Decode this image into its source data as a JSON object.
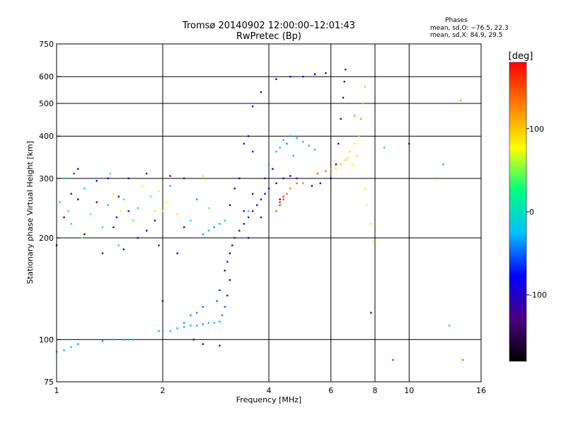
{
  "chart_data": {
    "type": "scatter",
    "title": "Tromsø 20140902 12:00:00–12:01:43",
    "subtitle": "RwPretec (Bp)",
    "xlabel": "Frequency [MHz]",
    "ylabel": "Stationary phase Virtual Height [km]",
    "x_scale": "log",
    "y_scale": "log",
    "xlim": [
      1,
      16
    ],
    "ylim": [
      75,
      750
    ],
    "x_ticks": [
      1,
      2,
      4,
      6,
      8,
      10,
      16
    ],
    "y_ticks": [
      75,
      100,
      200,
      300,
      400,
      500,
      600,
      750
    ],
    "grid": true,
    "phases": {
      "title": "Phases",
      "line1": "mean, sd,O: −76.5, 22.3",
      "line2": "mean, sd,X:  84.9, 29.5"
    },
    "colorbar": {
      "label": "[deg]",
      "range": [
        -180,
        180
      ],
      "ticks": [
        100,
        0,
        -100
      ],
      "colormap": [
        "#000000",
        "#4b0082",
        "#0000ff",
        "#00bfff",
        "#00ff7f",
        "#ffff00",
        "#ff7f00",
        "#ff0000"
      ]
    },
    "series": [
      {
        "values": [
          [
            1.02,
            255,
            -20
          ],
          [
            1.05,
            300,
            10
          ],
          [
            1.08,
            240,
            30
          ],
          [
            1.1,
            220,
            20
          ],
          [
            1.12,
            310,
            -60
          ],
          [
            1.15,
            260,
            -100
          ],
          [
            1.18,
            200,
            50
          ],
          [
            1.2,
            280,
            -10
          ],
          [
            1.25,
            235,
            40
          ],
          [
            1.3,
            295,
            -90
          ],
          [
            1.35,
            215,
            20
          ],
          [
            1.4,
            250,
            -20
          ],
          [
            1.42,
            310,
            30
          ],
          [
            1.45,
            270,
            60
          ],
          [
            1.48,
            230,
            -80
          ],
          [
            1.5,
            190,
            10
          ],
          [
            1.52,
            240,
            80
          ],
          [
            1.55,
            260,
            30
          ],
          [
            1.6,
            300,
            -110
          ],
          [
            1.65,
            225,
            40
          ],
          [
            1.7,
            245,
            20
          ],
          [
            1.75,
            285,
            70
          ],
          [
            1.8,
            210,
            -90
          ],
          [
            1.85,
            265,
            40
          ],
          [
            1.9,
            240,
            60
          ],
          [
            1.95,
            275,
            70
          ],
          [
            2.0,
            240,
            90
          ],
          [
            2.05,
            255,
            75
          ],
          [
            2.1,
            285,
            -20
          ],
          [
            2.2,
            235,
            85
          ],
          [
            2.3,
            300,
            -100
          ],
          [
            2.4,
            225,
            10
          ],
          [
            2.5,
            260,
            -40
          ],
          [
            2.6,
            305,
            60
          ],
          [
            2.7,
            245,
            40
          ]
        ]
      },
      {
        "values": [
          [
            1.0,
            190,
            -110
          ],
          [
            1.05,
            230,
            -120
          ],
          [
            1.1,
            270,
            -130
          ],
          [
            1.15,
            320,
            -110
          ],
          [
            1.2,
            205,
            -100
          ],
          [
            1.3,
            255,
            -140
          ],
          [
            1.35,
            180,
            -120
          ],
          [
            1.4,
            300,
            -100
          ],
          [
            1.45,
            215,
            -120
          ],
          [
            1.5,
            265,
            -110
          ],
          [
            1.55,
            185,
            -130
          ],
          [
            1.6,
            240,
            -100
          ],
          [
            1.7,
            200,
            -110
          ],
          [
            1.8,
            310,
            -120
          ],
          [
            1.9,
            225,
            -100
          ],
          [
            1.95,
            190,
            -110
          ],
          [
            2.0,
            130,
            -100
          ],
          [
            2.1,
            305,
            -120
          ],
          [
            2.2,
            180,
            -110
          ],
          [
            2.3,
            215,
            -100
          ],
          [
            2.45,
            100,
            -110
          ],
          [
            2.6,
            97,
            -120
          ],
          [
            2.9,
            96,
            -100
          ]
        ]
      },
      {
        "values": [
          [
            1.0,
            92,
            -20
          ],
          [
            1.05,
            93,
            -30
          ],
          [
            1.1,
            95,
            -25
          ],
          [
            1.15,
            97,
            -30
          ],
          [
            1.35,
            99,
            -35
          ],
          [
            1.45,
            100,
            -20
          ],
          [
            1.55,
            100,
            -25
          ],
          [
            1.6,
            100,
            -30
          ],
          [
            1.65,
            100,
            -20
          ]
        ]
      },
      {
        "values": [
          [
            1.95,
            106,
            -30
          ],
          [
            2.0,
            106,
            -35
          ],
          [
            2.1,
            106,
            -25
          ],
          [
            2.2,
            108,
            -30
          ],
          [
            2.3,
            109,
            -30
          ],
          [
            2.4,
            110,
            -25
          ],
          [
            2.5,
            110,
            -30
          ],
          [
            2.6,
            111,
            -35
          ],
          [
            2.7,
            112,
            -30
          ],
          [
            2.8,
            112,
            -25
          ],
          [
            2.9,
            113,
            -30
          ],
          [
            2.95,
            118,
            -40
          ],
          [
            3.0,
            125,
            -50
          ],
          [
            3.05,
            135,
            -70
          ],
          [
            3.1,
            150,
            -90
          ],
          [
            2.9,
            140,
            -60
          ],
          [
            2.85,
            130,
            -50
          ],
          [
            2.6,
            125,
            -45
          ],
          [
            2.5,
            120,
            -40
          ],
          [
            2.4,
            118,
            -40
          ],
          [
            2.3,
            112,
            -35
          ]
        ]
      },
      {
        "values": [
          [
            3.0,
            160,
            -100
          ],
          [
            3.05,
            170,
            -110
          ],
          [
            3.1,
            180,
            -110
          ],
          [
            3.15,
            190,
            -115
          ],
          [
            3.2,
            200,
            -120
          ],
          [
            3.3,
            210,
            -110
          ],
          [
            3.4,
            220,
            -115
          ],
          [
            3.5,
            230,
            -110
          ],
          [
            3.6,
            240,
            -100
          ],
          [
            3.7,
            250,
            -110
          ],
          [
            3.8,
            260,
            -100
          ],
          [
            3.9,
            270,
            -105
          ],
          [
            4.0,
            280,
            -100
          ],
          [
            4.2,
            290,
            -95
          ],
          [
            4.4,
            300,
            -90
          ],
          [
            4.6,
            305,
            -100
          ],
          [
            4.8,
            300,
            -110
          ],
          [
            5.0,
            290,
            -115
          ],
          [
            5.3,
            285,
            -100
          ],
          [
            5.6,
            290,
            -100
          ],
          [
            6.0,
            300,
            -100
          ],
          [
            6.2,
            330,
            -110
          ],
          [
            6.3,
            380,
            -110
          ],
          [
            6.4,
            450,
            -100
          ],
          [
            6.5,
            520,
            -100
          ],
          [
            6.55,
            580,
            -110
          ],
          [
            6.6,
            630,
            -100
          ],
          [
            3.1,
            250,
            -110
          ],
          [
            3.2,
            280,
            -100
          ],
          [
            3.3,
            300,
            -110
          ],
          [
            3.4,
            240,
            -120
          ],
          [
            3.5,
            200,
            -100
          ],
          [
            3.6,
            270,
            -110
          ],
          [
            3.8,
            230,
            -120
          ],
          [
            3.9,
            300,
            -100
          ],
          [
            4.1,
            320,
            -100
          ],
          [
            4.3,
            260,
            -110
          ]
        ]
      },
      {
        "values": [
          [
            2.6,
            205,
            -30
          ],
          [
            2.7,
            210,
            -25
          ],
          [
            2.8,
            215,
            -35
          ],
          [
            2.9,
            220,
            -30
          ],
          [
            3.0,
            225,
            -20
          ],
          [
            3.5,
            240,
            -10
          ],
          [
            4.0,
            330,
            -40
          ],
          [
            4.2,
            360,
            -30
          ],
          [
            4.4,
            390,
            -20
          ],
          [
            4.6,
            400,
            -30
          ],
          [
            4.8,
            395,
            -25
          ],
          [
            5.0,
            385,
            -20
          ],
          [
            5.2,
            375,
            -30
          ],
          [
            5.4,
            365,
            -20
          ],
          [
            4.3,
            370,
            -10
          ],
          [
            4.5,
            380,
            -40
          ],
          [
            4.7,
            350,
            -30
          ],
          [
            3.6,
            490,
            -70
          ],
          [
            3.8,
            540,
            -80
          ],
          [
            4.2,
            590,
            -90
          ],
          [
            4.6,
            600,
            -100
          ],
          [
            5.0,
            600,
            -90
          ],
          [
            5.4,
            610,
            -80
          ],
          [
            5.8,
            615,
            -100
          ],
          [
            3.5,
            400,
            -80
          ],
          [
            3.6,
            360,
            -90
          ],
          [
            3.4,
            380,
            -70
          ]
        ]
      },
      {
        "values": [
          [
            4.2,
            240,
            150
          ],
          [
            4.3,
            250,
            160
          ],
          [
            4.4,
            260,
            150
          ],
          [
            4.5,
            270,
            140
          ],
          [
            4.6,
            280,
            130
          ],
          [
            4.8,
            290,
            140
          ],
          [
            5.0,
            290,
            120
          ],
          [
            5.5,
            310,
            140
          ],
          [
            5.8,
            315,
            130
          ],
          [
            6.0,
            320,
            120
          ],
          [
            4.3,
            255,
            170
          ],
          [
            4.4,
            265,
            165
          ]
        ]
      },
      {
        "values": [
          [
            6.2,
            320,
            80
          ],
          [
            6.4,
            330,
            90
          ],
          [
            6.6,
            340,
            100
          ],
          [
            6.8,
            360,
            90
          ],
          [
            7.0,
            380,
            80
          ],
          [
            7.2,
            400,
            100
          ],
          [
            7.3,
            450,
            120
          ],
          [
            7.4,
            500,
            110
          ],
          [
            7.5,
            560,
            100
          ],
          [
            7.0,
            460,
            120
          ],
          [
            7.1,
            350,
            90
          ],
          [
            6.9,
            330,
            70
          ],
          [
            6.7,
            345,
            85
          ]
        ]
      },
      {
        "values": [
          [
            7.5,
            280,
            90
          ],
          [
            7.6,
            250,
            80
          ],
          [
            7.8,
            220,
            70
          ],
          [
            7.9,
            195,
            80
          ],
          [
            12.0,
            300,
            140
          ],
          [
            12.5,
            330,
            -30
          ],
          [
            13.0,
            110,
            -10
          ],
          [
            14.0,
            510,
            120
          ],
          [
            14.2,
            87,
            140
          ],
          [
            10.0,
            380,
            -120
          ],
          [
            7.8,
            120,
            -110
          ],
          [
            9.0,
            87,
            170
          ],
          [
            8.5,
            370,
            10
          ]
        ]
      }
    ]
  }
}
